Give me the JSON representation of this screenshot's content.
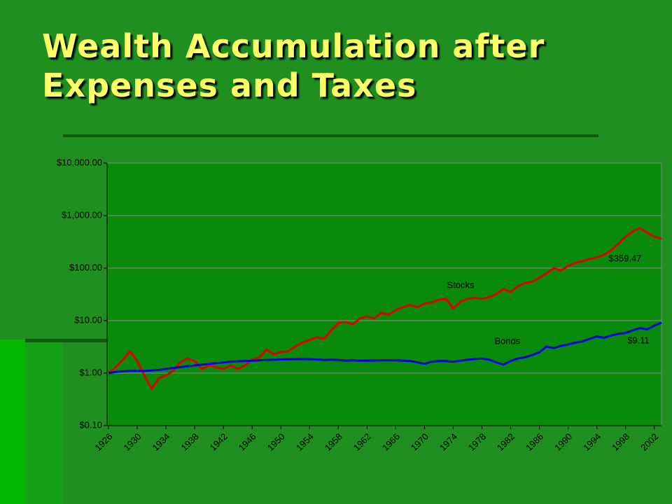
{
  "chart_data": {
    "type": "line",
    "title": "Wealth Accumulation after Expenses and Taxes",
    "log_scale": true,
    "grid": true,
    "x": [
      1926,
      1927,
      1928,
      1929,
      1930,
      1931,
      1932,
      1933,
      1934,
      1935,
      1936,
      1937,
      1938,
      1939,
      1940,
      1941,
      1942,
      1943,
      1944,
      1945,
      1946,
      1947,
      1948,
      1949,
      1950,
      1951,
      1952,
      1953,
      1954,
      1955,
      1956,
      1957,
      1958,
      1959,
      1960,
      1961,
      1962,
      1963,
      1964,
      1965,
      1966,
      1967,
      1968,
      1969,
      1970,
      1971,
      1972,
      1973,
      1974,
      1975,
      1976,
      1977,
      1978,
      1979,
      1980,
      1981,
      1982,
      1983,
      1984,
      1985,
      1986,
      1987,
      1988,
      1989,
      1990,
      1991,
      1992,
      1993,
      1994,
      1995,
      1996,
      1997,
      1998,
      1999,
      2000,
      2001,
      2002,
      2003
    ],
    "series": [
      {
        "name": "Stocks",
        "color": "#e00000",
        "values": [
          1.0,
          1.3,
          1.8,
          2.6,
          1.7,
          0.9,
          0.5,
          0.8,
          0.9,
          1.1,
          1.6,
          1.9,
          1.7,
          1.2,
          1.4,
          1.3,
          1.2,
          1.4,
          1.2,
          1.4,
          1.8,
          2.0,
          2.8,
          2.3,
          2.5,
          2.6,
          3.2,
          3.8,
          4.3,
          4.8,
          4.5,
          6.5,
          9,
          9.5,
          8.5,
          11,
          12,
          11,
          14,
          13,
          16,
          18,
          20,
          18,
          21,
          22,
          25,
          26,
          17,
          23,
          26,
          27,
          26,
          28,
          32,
          40,
          35,
          45,
          52,
          55,
          65,
          80,
          100,
          90,
          110,
          125,
          135,
          150,
          160,
          180,
          220,
          290,
          400,
          500,
          580,
          470,
          400,
          359.47
        ]
      },
      {
        "name": "Bonds",
        "color": "#0000e0",
        "values": [
          1.0,
          1.05,
          1.08,
          1.1,
          1.1,
          1.1,
          1.12,
          1.15,
          1.2,
          1.25,
          1.3,
          1.35,
          1.4,
          1.45,
          1.5,
          1.55,
          1.6,
          1.65,
          1.68,
          1.7,
          1.72,
          1.75,
          1.78,
          1.8,
          1.82,
          1.83,
          1.84,
          1.85,
          1.85,
          1.82,
          1.78,
          1.8,
          1.78,
          1.72,
          1.75,
          1.72,
          1.72,
          1.74,
          1.75,
          1.76,
          1.75,
          1.72,
          1.7,
          1.6,
          1.5,
          1.65,
          1.7,
          1.7,
          1.65,
          1.72,
          1.8,
          1.85,
          1.9,
          1.8,
          1.6,
          1.45,
          1.7,
          1.9,
          2.0,
          2.2,
          2.5,
          3.2,
          3.0,
          3.3,
          3.5,
          3.8,
          4.0,
          4.5,
          5.0,
          4.7,
          5.2,
          5.6,
          5.8,
          6.5,
          7.2,
          6.8,
          8.0,
          9.11
        ]
      }
    ],
    "annotations": [
      "Stocks",
      "Bonds",
      "$359.47",
      "$9.11"
    ],
    "xlim": [
      1926,
      2003
    ],
    "xticks": [
      1926,
      1930,
      1934,
      1938,
      1942,
      1946,
      1950,
      1954,
      1958,
      1962,
      1966,
      1970,
      1974,
      1978,
      1982,
      1986,
      1990,
      1994,
      1998,
      2002
    ],
    "ylim": [
      0.1,
      10000
    ],
    "yticks": [
      {
        "value": 0.1,
        "label": "$0.10"
      },
      {
        "value": 1,
        "label": "$1.00"
      },
      {
        "value": 10,
        "label": "$10.00"
      },
      {
        "value": 100,
        "label": "$100.00"
      },
      {
        "value": 1000,
        "label": "$1,000.00"
      },
      {
        "value": 10000,
        "label": "$10,000.00"
      }
    ]
  }
}
